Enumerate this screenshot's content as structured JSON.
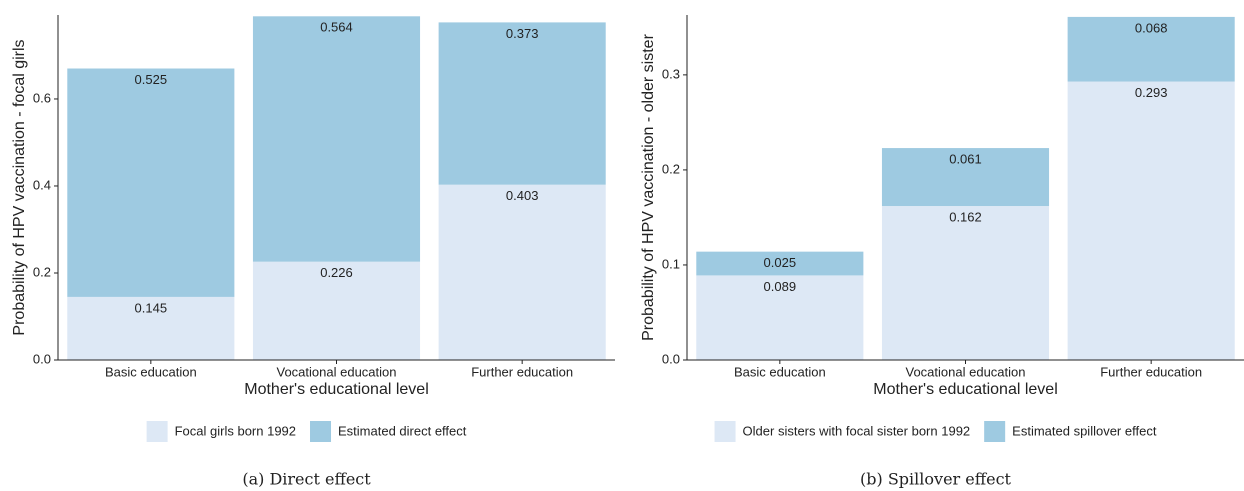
{
  "chart_data": [
    {
      "type": "stacked_bar",
      "caption": "(a) Direct effect",
      "x_label": "Mother's educational level",
      "y_label": "Probability of HPV vaccination - focal girls",
      "categories": [
        "Basic education",
        "Vocational education",
        "Further education"
      ],
      "series": [
        {
          "name": "Focal girls born 1992",
          "color": "#dde8f5",
          "values": [
            0.145,
            0.226,
            0.403
          ]
        },
        {
          "name": "Estimated direct effect",
          "color": "#9ecae1",
          "values": [
            0.525,
            0.564,
            0.373
          ]
        }
      ],
      "ylim": [
        0,
        0.793
      ],
      "yticks": [
        {
          "value": 0,
          "label": "0.0"
        },
        0.2,
        0.4,
        0.6
      ]
    },
    {
      "type": "stacked_bar",
      "caption": "(b) Spillover effect",
      "x_label": "Mother's educational level",
      "y_label": "Probability of HPV vaccination - older sister",
      "categories": [
        "Basic education",
        "Vocational education",
        "Further education"
      ],
      "series": [
        {
          "name": "Older sisters with focal sister born 1992",
          "color": "#dde8f5",
          "values": [
            0.089,
            0.162,
            0.293
          ]
        },
        {
          "name": "Estimated spillover effect",
          "color": "#9ecae1",
          "values": [
            0.025,
            0.061,
            0.068
          ]
        }
      ],
      "ylim": [
        0,
        0.363
      ],
      "yticks": [
        {
          "value": 0,
          "label": "0.0"
        },
        0.1,
        0.2,
        0.3
      ]
    }
  ]
}
